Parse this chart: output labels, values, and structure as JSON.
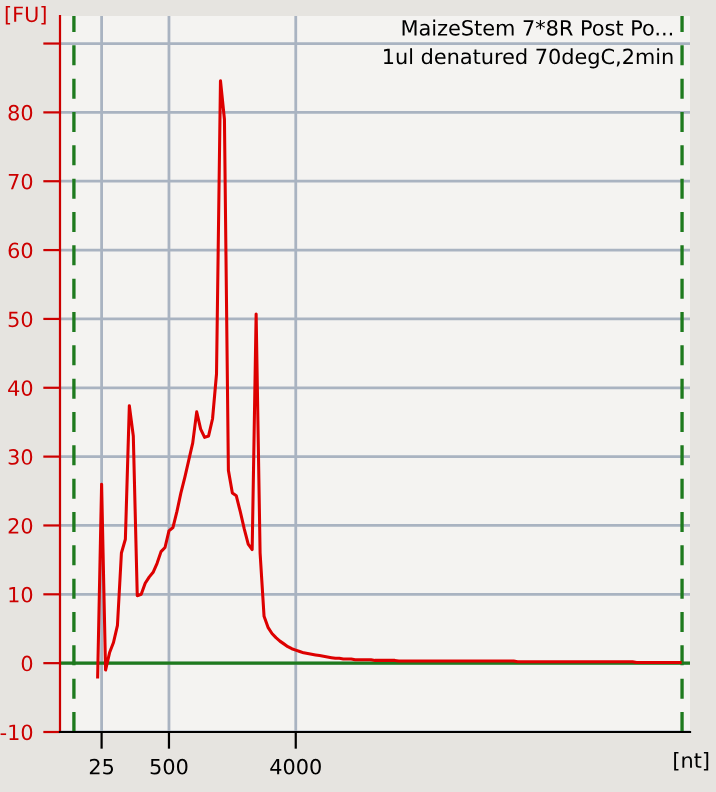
{
  "chart_data": {
    "type": "line",
    "title": "MaizeStem 7*8R Post Po...",
    "subtitle": "1ul denatured 70degC,2min",
    "xlabel": "[nt]",
    "ylabel": "[FU]",
    "categories": [
      null,
      null,
      null,
      null,
      null,
      null,
      null,
      null,
      null,
      null,
      "25",
      null,
      null,
      null,
      null,
      null,
      null,
      null,
      null,
      null,
      null,
      null,
      null,
      null,
      null,
      null,
      null,
      "500",
      null,
      null,
      null,
      null,
      null,
      null,
      null,
      null,
      null,
      null,
      null,
      null,
      null,
      null,
      null,
      null,
      null,
      null,
      null,
      null,
      null,
      null,
      null,
      null,
      null,
      null,
      null,
      null,
      null,
      null,
      null,
      "4000",
      null,
      null,
      null,
      null,
      null,
      null,
      null,
      null,
      null,
      null,
      null,
      null,
      null,
      null,
      null,
      null,
      null,
      null,
      null,
      null,
      null,
      null,
      null,
      null,
      null,
      null,
      null,
      null,
      null,
      null,
      null,
      null,
      null,
      null,
      null,
      null,
      null,
      null,
      null,
      null,
      null,
      null,
      null,
      null,
      null,
      null,
      null,
      null,
      null,
      null,
      null,
      null,
      null,
      null,
      null,
      null,
      null,
      null,
      null,
      null,
      null,
      null,
      null,
      null,
      null,
      null,
      null,
      null,
      null,
      null,
      null,
      null,
      null,
      null,
      null,
      null,
      null,
      null,
      null,
      null,
      null,
      null,
      null,
      null,
      null,
      null,
      null,
      null,
      null,
      null,
      null,
      null,
      null,
      null,
      null,
      null,
      null,
      null,
      null
    ],
    "series": [
      {
        "color": "#dd0000",
        "values": [
          null,
          null,
          null,
          null,
          null,
          null,
          null,
          null,
          null,
          -2,
          26,
          -1,
          1.5,
          3,
          5.5,
          16,
          18,
          37.4,
          33,
          9.8,
          10,
          11.6,
          12.5,
          13.2,
          14.5,
          16.2,
          16.8,
          19.2,
          19.7,
          22,
          24.7,
          27,
          29.5,
          32,
          36.5,
          34,
          32.8,
          33,
          35.5,
          42,
          84.6,
          79,
          28,
          24.7,
          24.3,
          22,
          19.5,
          17.3,
          16.5,
          50.7,
          16,
          6.8,
          5.2,
          4.3,
          3.7,
          3.2,
          2.8,
          2.4,
          2.1,
          1.9,
          1.7,
          1.5,
          1.4,
          1.3,
          1.2,
          1.1,
          1.0,
          0.9,
          0.8,
          0.7,
          0.7,
          0.6,
          0.6,
          0.6,
          0.5,
          0.5,
          0.5,
          0.5,
          0.5,
          0.4,
          0.4,
          0.4,
          0.4,
          0.4,
          0.4,
          0.3,
          0.3,
          0.3,
          0.3,
          0.3,
          0.3,
          0.3,
          0.3,
          0.3,
          0.3,
          0.3,
          0.3,
          0.3,
          0.3,
          0.3,
          0.3,
          0.3,
          0.3,
          0.3,
          0.3,
          0.3,
          0.3,
          0.3,
          0.3,
          0.3,
          0.3,
          0.3,
          0.3,
          0.3,
          0.3,
          0.2,
          0.2,
          0.2,
          0.2,
          0.2,
          0.2,
          0.2,
          0.2,
          0.2,
          0.2,
          0.2,
          0.2,
          0.2,
          0.2,
          0.2,
          0.2,
          0.2,
          0.2,
          0.2,
          0.2,
          0.2,
          0.2,
          0.2,
          0.2,
          0.2,
          0.2,
          0.2,
          0.2,
          0.2,
          0.2,
          0.1,
          0.1,
          0.1,
          0.1,
          0.1,
          0.1,
          0.1,
          0.1,
          0.1,
          0.1,
          0.1,
          0.1,
          null,
          null
        ]
      }
    ],
    "ylim": [
      -10,
      94
    ],
    "yticks": [
      -10,
      0,
      10,
      20,
      30,
      40,
      50,
      60,
      70,
      80,
      {
        "value": 90,
        "label": null
      }
    ],
    "grid": true,
    "marker": "none",
    "line_style": "solid",
    "ref_lines": [
      {
        "axis": "y",
        "value": 0,
        "color": "#1e7a1e",
        "line_style": "solid"
      }
    ]
  }
}
